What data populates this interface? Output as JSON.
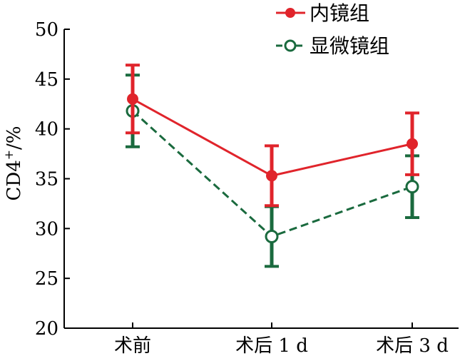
{
  "chart_data": {
    "type": "line",
    "categories": [
      "术前",
      "术后 1 d",
      "术后 3 d"
    ],
    "ylim": [
      20,
      50
    ],
    "yticks": [
      20,
      25,
      30,
      35,
      40,
      45,
      50
    ],
    "ylabel_main": "CD4",
    "ylabel_sup": "+",
    "ylabel_unit": "/%",
    "xlabel": "",
    "grid": false,
    "legend_position": "top-right",
    "series": [
      {
        "name": "内镜组",
        "values": [
          43.0,
          35.3,
          38.5
        ],
        "error": [
          3.4,
          3.0,
          3.1
        ],
        "color": "#e0242b",
        "line_style": "solid",
        "marker": "filled-circle"
      },
      {
        "name": "显微镜组",
        "values": [
          41.8,
          29.2,
          34.2
        ],
        "error": [
          3.6,
          3.0,
          3.1
        ],
        "color": "#1a6a3e",
        "line_style": "dashed",
        "marker": "open-circle"
      }
    ]
  }
}
